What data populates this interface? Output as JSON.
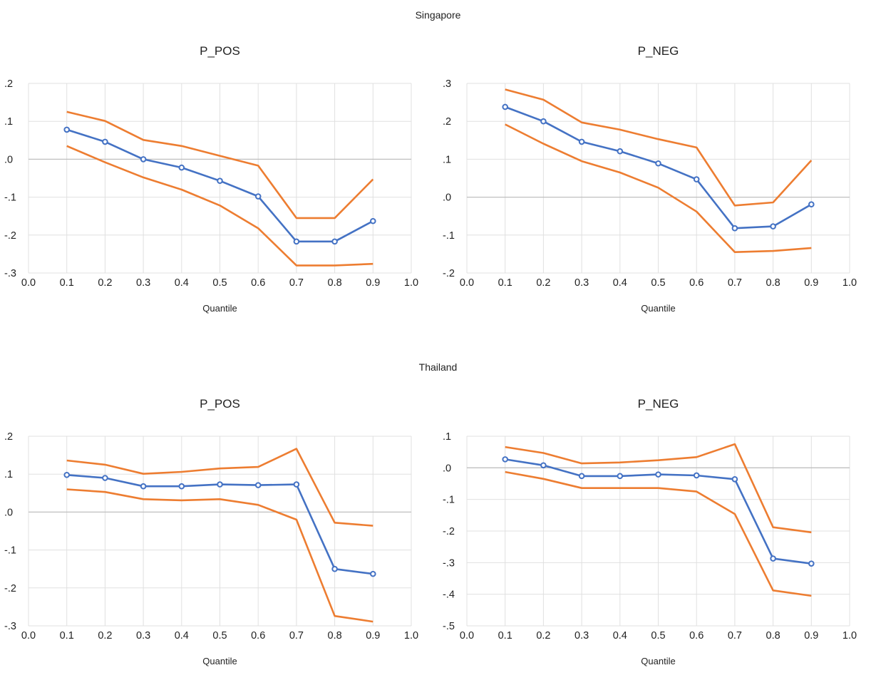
{
  "groups": [
    {
      "title": "Singapore"
    },
    {
      "title": "Thailand"
    }
  ],
  "colors": {
    "estimate": "#4472c4",
    "band": "#ed7d31",
    "grid": "#e0e0e0",
    "zero": "#bfbfbf"
  },
  "chart_data": [
    {
      "type": "line",
      "group": "Singapore",
      "title": "P_POS",
      "xlabel": "Quantile",
      "xlim": [
        0.0,
        1.0
      ],
      "ylim": [
        -0.3,
        0.2
      ],
      "xticks": [
        "0.0",
        "0.1",
        "0.2",
        "0.3",
        "0.4",
        "0.5",
        "0.6",
        "0.7",
        "0.8",
        "0.9",
        "1.0"
      ],
      "yticks": [
        ".2",
        ".1",
        ".0",
        "-.1",
        "-.2",
        "-.3"
      ],
      "x": [
        0.1,
        0.2,
        0.3,
        0.4,
        0.5,
        0.6,
        0.7,
        0.8,
        0.9
      ],
      "series": [
        {
          "role": "estimate",
          "values": [
            0.078,
            0.046,
            0.0,
            -0.022,
            -0.057,
            -0.098,
            -0.217,
            -0.217,
            -0.163
          ]
        },
        {
          "role": "upper",
          "values": [
            0.125,
            0.101,
            0.051,
            0.035,
            0.009,
            -0.017,
            -0.155,
            -0.155,
            -0.053
          ]
        },
        {
          "role": "lower",
          "values": [
            0.035,
            -0.008,
            -0.048,
            -0.08,
            -0.122,
            -0.182,
            -0.28,
            -0.28,
            -0.276
          ]
        }
      ]
    },
    {
      "type": "line",
      "group": "Singapore",
      "title": "P_NEG",
      "xlabel": "Quantile",
      "xlim": [
        0.0,
        1.0
      ],
      "ylim": [
        -0.2,
        0.3
      ],
      "xticks": [
        "0.0",
        "0.1",
        "0.2",
        "0.3",
        "0.4",
        "0.5",
        "0.6",
        "0.7",
        "0.8",
        "0.9",
        "1.0"
      ],
      "yticks": [
        ".3",
        ".2",
        ".1",
        ".0",
        "-.1",
        "-.2"
      ],
      "x": [
        0.1,
        0.2,
        0.3,
        0.4,
        0.5,
        0.6,
        0.7,
        0.8,
        0.9
      ],
      "series": [
        {
          "role": "estimate",
          "values": [
            0.238,
            0.2,
            0.146,
            0.121,
            0.089,
            0.047,
            -0.082,
            -0.077,
            -0.019
          ]
        },
        {
          "role": "upper",
          "values": [
            0.284,
            0.257,
            0.197,
            0.178,
            0.153,
            0.131,
            -0.022,
            -0.014,
            0.097
          ]
        },
        {
          "role": "lower",
          "values": [
            0.192,
            0.141,
            0.095,
            0.065,
            0.025,
            -0.038,
            -0.145,
            -0.142,
            -0.134
          ]
        }
      ]
    },
    {
      "type": "line",
      "group": "Thailand",
      "title": "P_POS",
      "xlabel": "Quantile",
      "xlim": [
        0.0,
        1.0
      ],
      "ylim": [
        -0.3,
        0.2
      ],
      "xticks": [
        "0.0",
        "0.1",
        "0.2",
        "0.3",
        "0.4",
        "0.5",
        "0.6",
        "0.7",
        "0.8",
        "0.9",
        "1.0"
      ],
      "yticks": [
        ".2",
        ".1",
        ".0",
        "-.1",
        "-.2",
        "-.3"
      ],
      "x": [
        0.1,
        0.2,
        0.3,
        0.4,
        0.5,
        0.6,
        0.7,
        0.8,
        0.9
      ],
      "series": [
        {
          "role": "estimate",
          "values": [
            0.098,
            0.09,
            0.068,
            0.068,
            0.073,
            0.071,
            0.073,
            -0.15,
            -0.163
          ]
        },
        {
          "role": "upper",
          "values": [
            0.136,
            0.125,
            0.101,
            0.106,
            0.115,
            0.119,
            0.167,
            -0.028,
            -0.036
          ]
        },
        {
          "role": "lower",
          "values": [
            0.06,
            0.053,
            0.034,
            0.031,
            0.034,
            0.019,
            -0.02,
            -0.274,
            -0.289
          ]
        }
      ]
    },
    {
      "type": "line",
      "group": "Thailand",
      "title": "P_NEG",
      "xlabel": "Quantile",
      "xlim": [
        0.0,
        1.0
      ],
      "ylim": [
        -0.5,
        0.1
      ],
      "xticks": [
        "0.0",
        "0.1",
        "0.2",
        "0.3",
        "0.4",
        "0.5",
        "0.6",
        "0.7",
        "0.8",
        "0.9",
        "1.0"
      ],
      "yticks": [
        ".1",
        ".0",
        "-.1",
        "-.2",
        "-.3",
        "-.4",
        "-.5"
      ],
      "x": [
        0.1,
        0.2,
        0.3,
        0.4,
        0.5,
        0.6,
        0.7,
        0.8,
        0.9
      ],
      "series": [
        {
          "role": "estimate",
          "values": [
            0.027,
            0.008,
            -0.026,
            -0.026,
            -0.021,
            -0.024,
            -0.036,
            -0.287,
            -0.303
          ]
        },
        {
          "role": "upper",
          "values": [
            0.066,
            0.047,
            0.014,
            0.017,
            0.024,
            0.034,
            0.075,
            -0.188,
            -0.204
          ]
        },
        {
          "role": "lower",
          "values": [
            -0.013,
            -0.035,
            -0.064,
            -0.064,
            -0.064,
            -0.075,
            -0.146,
            -0.388,
            -0.405
          ]
        }
      ]
    }
  ]
}
